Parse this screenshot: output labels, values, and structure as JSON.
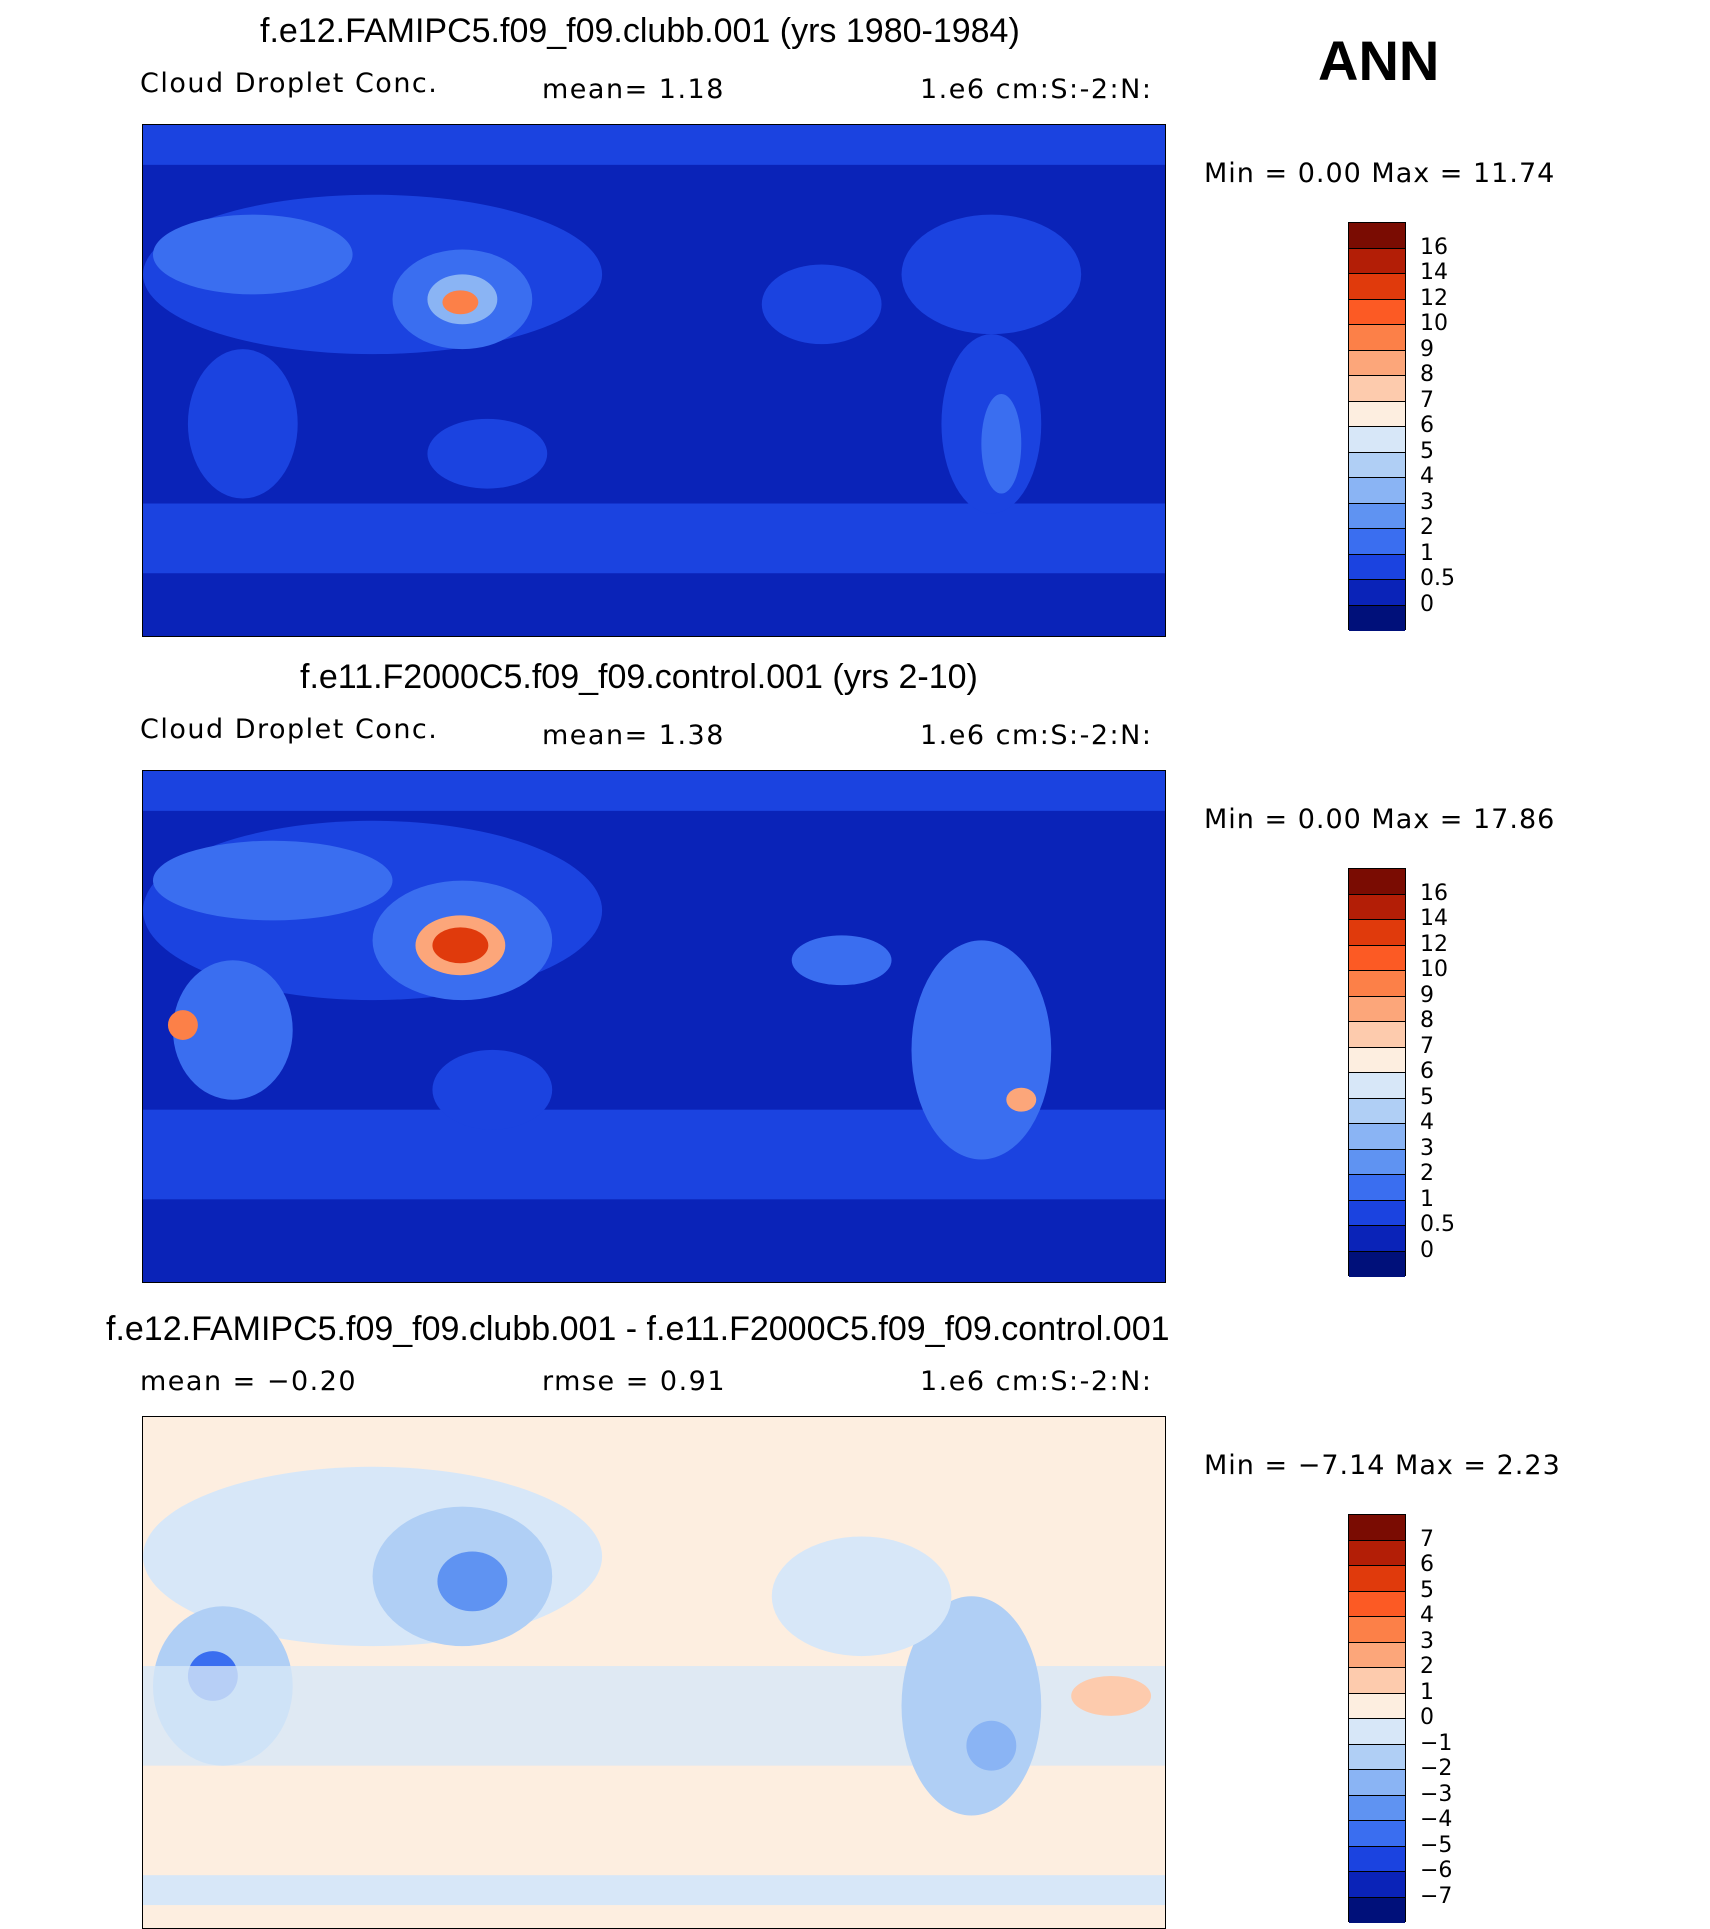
{
  "season": "ANN",
  "panels": [
    {
      "title": "f.e12.FAMIPC5.f09_f09.clubb.001 (yrs 1980-1984)",
      "variable": "Cloud Droplet Conc.",
      "stat_text": "mean=    1.18",
      "units": "1.e6 cm:S:-2:N:",
      "minmax": "Min  =     0.00  Max  =    11.74",
      "legend_labels": [
        "16",
        "14",
        "12",
        "10",
        "9",
        "8",
        "7",
        "6",
        "5",
        "4",
        "3",
        "2",
        "1",
        "0.5",
        "0"
      ],
      "legend_colors": [
        "#7a0c02",
        "#b31e06",
        "#e03a0c",
        "#fc5a24",
        "#fc8048",
        "#fca67a",
        "#fdcbad",
        "#fdeee0",
        "#d7e7f8",
        "#b0cff5",
        "#8ab4f4",
        "#5f93f2",
        "#3a6ef0",
        "#1b43e0",
        "#0a23b8",
        "#00107a"
      ]
    },
    {
      "title": "f.e11.F2000C5.f09_f09.control.001 (yrs 2-10)",
      "variable": "Cloud Droplet Conc.",
      "stat_text": "mean=    1.38",
      "units": "1.e6 cm:S:-2:N:",
      "minmax": "Min  =     0.00  Max  =    17.86",
      "legend_labels": [
        "16",
        "14",
        "12",
        "10",
        "9",
        "8",
        "7",
        "6",
        "5",
        "4",
        "3",
        "2",
        "1",
        "0.5",
        "0"
      ],
      "legend_colors": [
        "#7a0c02",
        "#b31e06",
        "#e03a0c",
        "#fc5a24",
        "#fc8048",
        "#fca67a",
        "#fdcbad",
        "#fdeee0",
        "#d7e7f8",
        "#b0cff5",
        "#8ab4f4",
        "#5f93f2",
        "#3a6ef0",
        "#1b43e0",
        "#0a23b8",
        "#00107a"
      ]
    },
    {
      "title": "f.e12.FAMIPC5.f09_f09.clubb.001 - f.e11.F2000C5.f09_f09.control.001",
      "stat_left": "mean  =   −0.20",
      "stat_text": "rmse  =     0.91",
      "units": "1.e6 cm:S:-2:N:",
      "minmax": "Min  =   −7.14  Max  =      2.23",
      "legend_labels": [
        "7",
        "6",
        "5",
        "4",
        "3",
        "2",
        "1",
        "0",
        "−1",
        "−2",
        "−3",
        "−4",
        "−5",
        "−6",
        "−7"
      ],
      "legend_colors": [
        "#7a0c02",
        "#b31e06",
        "#e03a0c",
        "#fc5a24",
        "#fc8048",
        "#fca67a",
        "#fdcbad",
        "#fdeee0",
        "#d7e7f8",
        "#b0cff5",
        "#8ab4f4",
        "#5f93f2",
        "#3a6ef0",
        "#1b43e0",
        "#0a23b8",
        "#00107a"
      ]
    }
  ]
}
